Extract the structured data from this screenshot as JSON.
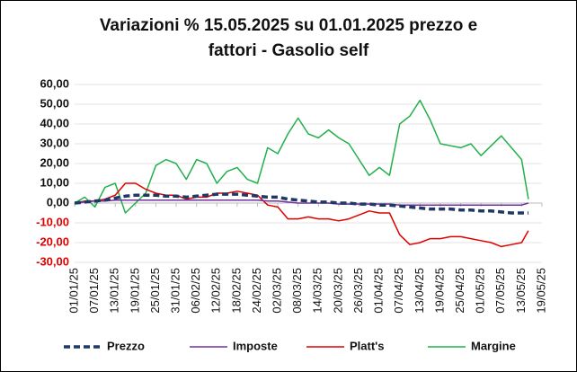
{
  "chart_data": {
    "type": "line",
    "title": "Variazioni % 15.05.2025 su 01.01.2025 prezzo e fattori - Gasolio self",
    "x": [
      "2025-01-01",
      "2025-01-04",
      "2025-01-07",
      "2025-01-10",
      "2025-01-13",
      "2025-01-16",
      "2025-01-19",
      "2025-01-22",
      "2025-01-25",
      "2025-01-28",
      "2025-01-31",
      "2025-02-03",
      "2025-02-06",
      "2025-02-09",
      "2025-02-12",
      "2025-02-15",
      "2025-02-18",
      "2025-02-21",
      "2025-02-24",
      "2025-02-27",
      "2025-03-02",
      "2025-03-05",
      "2025-03-08",
      "2025-03-11",
      "2025-03-14",
      "2025-03-17",
      "2025-03-20",
      "2025-03-23",
      "2025-03-26",
      "2025-03-29",
      "2025-04-01",
      "2025-04-04",
      "2025-04-07",
      "2025-04-10",
      "2025-04-13",
      "2025-04-16",
      "2025-04-19",
      "2025-04-22",
      "2025-04-25",
      "2025-04-28",
      "2025-05-01",
      "2025-05-04",
      "2025-05-07",
      "2025-05-10",
      "2025-05-13",
      "2025-05-15"
    ],
    "series": [
      {
        "name": "Prezzo",
        "color": "#1f3864",
        "dashed": true,
        "width": 3.5,
        "values": [
          0,
          0.5,
          1,
          1.5,
          2.5,
          3.5,
          4,
          4,
          4,
          3.5,
          3.5,
          3,
          3.5,
          4,
          4.5,
          4.5,
          4.5,
          4,
          3.5,
          3,
          3,
          2,
          1.5,
          1,
          0.5,
          0.5,
          0,
          0,
          -0.5,
          -0.5,
          -1,
          -1,
          -1.5,
          -2,
          -2.5,
          -3,
          -3,
          -3,
          -3.5,
          -3.5,
          -4,
          -4,
          -4.5,
          -5,
          -5,
          -5
        ]
      },
      {
        "name": "Imposte",
        "color": "#7030a0",
        "width": 1.5,
        "values": [
          0,
          0.5,
          1,
          1,
          1.5,
          1.5,
          1.5,
          1.5,
          1.5,
          1.5,
          1.5,
          1.5,
          1.5,
          1.5,
          1.5,
          1.5,
          1.5,
          1.5,
          1.5,
          1,
          1,
          0.5,
          0,
          0,
          0,
          0,
          -0.5,
          -0.5,
          -0.5,
          -0.5,
          -0.5,
          -0.5,
          -1,
          -1,
          -1,
          -1,
          -1,
          -1,
          -1,
          -1,
          -1,
          -1,
          -1,
          -1,
          -1,
          0
        ]
      },
      {
        "name": "Platt's",
        "color": "#e00000",
        "width": 1.5,
        "values": [
          0,
          1,
          1,
          2,
          4,
          10,
          10,
          7,
          5,
          4,
          4,
          2,
          3,
          3,
          5,
          5,
          6,
          5,
          4,
          -1,
          -2,
          -8,
          -8,
          -7,
          -8,
          -8,
          -9,
          -8,
          -6,
          -4,
          -5,
          -5,
          -16,
          -21,
          -20,
          -18,
          -18,
          -17,
          -17,
          -18,
          -19,
          -20,
          -22,
          -21,
          -20,
          -14
        ]
      },
      {
        "name": "Margine",
        "color": "#22b04b",
        "width": 1.5,
        "values": [
          0,
          3,
          -2,
          8,
          10,
          -5,
          0,
          5,
          19,
          22,
          20,
          12,
          22,
          20,
          10,
          16,
          18,
          12,
          10,
          28,
          25,
          35,
          43,
          35,
          33,
          37,
          33,
          30,
          22,
          14,
          18,
          14,
          40,
          44,
          52,
          42,
          30,
          29,
          28,
          30,
          24,
          29,
          34,
          28,
          22,
          2
        ]
      }
    ],
    "xlim": [
      "2025-01-01",
      "2025-05-19"
    ],
    "xticks": [
      {
        "value": "2025-01-01",
        "label": "01/01/25"
      },
      {
        "value": "2025-01-07",
        "label": "07/01/25"
      },
      {
        "value": "2025-01-13",
        "label": "13/01/25"
      },
      {
        "value": "2025-01-19",
        "label": "19/01/25"
      },
      {
        "value": "2025-01-25",
        "label": "25/01/25"
      },
      {
        "value": "2025-01-31",
        "label": "31/01/25"
      },
      {
        "value": "2025-02-06",
        "label": "06/02/25"
      },
      {
        "value": "2025-02-12",
        "label": "12/02/25"
      },
      {
        "value": "2025-02-18",
        "label": "18/02/25"
      },
      {
        "value": "2025-02-24",
        "label": "24/02/25"
      },
      {
        "value": "2025-03-02",
        "label": "02/03/25"
      },
      {
        "value": "2025-03-08",
        "label": "08/03/25"
      },
      {
        "value": "2025-03-14",
        "label": "14/03/25"
      },
      {
        "value": "2025-03-20",
        "label": "20/03/25"
      },
      {
        "value": "2025-03-26",
        "label": "26/03/25"
      },
      {
        "value": "2025-04-01",
        "label": "01/04/25"
      },
      {
        "value": "2025-04-07",
        "label": "07/04/25"
      },
      {
        "value": "2025-04-13",
        "label": "13/04/25"
      },
      {
        "value": "2025-04-19",
        "label": "19/04/25"
      },
      {
        "value": "2025-04-25",
        "label": "25/04/25"
      },
      {
        "value": "2025-05-01",
        "label": "01/05/25"
      },
      {
        "value": "2025-05-07",
        "label": "07/05/25"
      },
      {
        "value": "2025-05-13",
        "label": "13/05/25"
      },
      {
        "value": "2025-05-19",
        "label": "19/05/25"
      }
    ],
    "ylim": [
      -30,
      60
    ],
    "yticks": [
      {
        "value": -30,
        "label": "-30,00"
      },
      {
        "value": -20,
        "label": "-20,00"
      },
      {
        "value": -10,
        "label": "-10,00"
      },
      {
        "value": 0,
        "label": "0,00"
      },
      {
        "value": 10,
        "label": "10,00"
      },
      {
        "value": 20,
        "label": "20,00"
      },
      {
        "value": 30,
        "label": "30,00"
      },
      {
        "value": 40,
        "label": "40,00"
      },
      {
        "value": 50,
        "label": "50,00"
      },
      {
        "value": 60,
        "label": "60,00"
      }
    ],
    "negative_tick_color": "#e00000",
    "grid": true,
    "legend": "bottom"
  }
}
